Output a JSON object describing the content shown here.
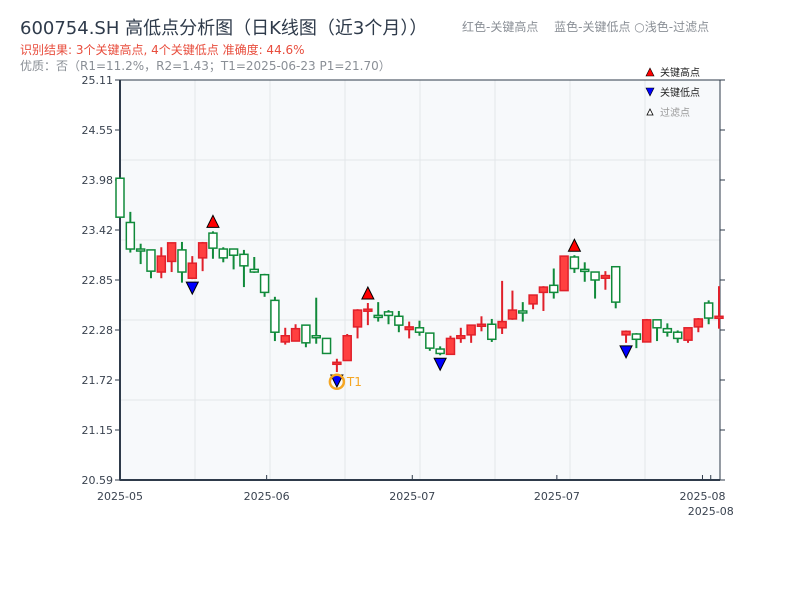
{
  "header": {
    "title": "600754.SH 高低点分析图（日K线图（近3个月））",
    "subtitle": "识别结果: 3个关键高点, 4个关键低点  准确度: 44.6%",
    "quality": "优质：否（R1=11.2%，R2=1.43；T1=2025-06-23 P1=21.70）",
    "color_note": "红色-关键高点　 蓝色-关键低点 ○浅色-过滤点"
  },
  "chart_data": {
    "type": "candlestick",
    "title": "",
    "xlabel": "",
    "ylabel": "",
    "ylim": [
      20.59,
      25.11
    ],
    "yticks": [
      "25.11",
      "24.55",
      "23.98",
      "23.42",
      "22.85",
      "22.28",
      "21.72",
      "21.15",
      "20.59"
    ],
    "xticks": [
      {
        "index": 0,
        "label": "2025-05"
      },
      {
        "index": 14.2,
        "label": "2025-06"
      },
      {
        "index": 28.3,
        "label": "2025-07"
      },
      {
        "index": 42.3,
        "label": "2025-07"
      },
      {
        "index": 56.4,
        "label": "2025-08"
      },
      {
        "index": 57.2,
        "label": "2025-08"
      }
    ],
    "grid": true,
    "colors": {
      "up": "#e0202a",
      "up_fill": "#ff4040",
      "down": "#108a3a",
      "down_fill": "#ffffff",
      "high_marker": "#ff0000",
      "low_marker": "#0000ff",
      "t1_marker": "#f5a623",
      "plot_bg": "#f7f9fb",
      "axis": "#2e3a4a"
    },
    "candles_ohlc": [
      [
        24.0,
        24.01,
        23.55,
        23.56
      ],
      [
        23.5,
        23.62,
        23.16,
        23.2
      ],
      [
        23.2,
        23.26,
        23.03,
        23.18
      ],
      [
        23.19,
        23.19,
        22.87,
        22.95
      ],
      [
        22.94,
        23.22,
        22.87,
        23.12
      ],
      [
        23.06,
        23.27,
        22.94,
        23.27
      ],
      [
        23.19,
        23.28,
        22.82,
        22.94
      ],
      [
        22.87,
        23.12,
        22.86,
        23.04
      ],
      [
        23.1,
        23.28,
        22.95,
        23.27
      ],
      [
        23.38,
        23.4,
        23.09,
        23.21
      ],
      [
        23.2,
        23.22,
        23.05,
        23.1
      ],
      [
        23.2,
        23.2,
        22.97,
        23.13
      ],
      [
        23.14,
        23.19,
        22.77,
        23.01
      ],
      [
        22.97,
        23.11,
        22.93,
        22.94
      ],
      [
        22.91,
        22.92,
        22.66,
        22.71
      ],
      [
        22.62,
        22.66,
        22.16,
        22.26
      ],
      [
        22.15,
        22.31,
        22.12,
        22.22
      ],
      [
        22.16,
        22.35,
        22.16,
        22.3
      ],
      [
        22.34,
        22.34,
        22.09,
        22.14
      ],
      [
        22.22,
        22.65,
        22.13,
        22.2
      ],
      [
        22.19,
        22.19,
        22.02,
        22.02
      ],
      [
        21.9,
        21.96,
        21.81,
        21.92
      ],
      [
        21.94,
        22.24,
        21.94,
        22.22
      ],
      [
        22.32,
        22.52,
        22.19,
        22.51
      ],
      [
        22.5,
        22.59,
        22.34,
        22.52
      ],
      [
        22.45,
        22.6,
        22.38,
        22.44
      ],
      [
        22.49,
        22.51,
        22.35,
        22.45
      ],
      [
        22.44,
        22.5,
        22.26,
        22.34
      ],
      [
        22.29,
        22.38,
        22.19,
        22.32
      ],
      [
        22.31,
        22.39,
        22.22,
        22.26
      ],
      [
        22.25,
        22.25,
        22.05,
        22.08
      ],
      [
        22.07,
        22.1,
        22.0,
        22.02
      ],
      [
        22.01,
        22.22,
        22.01,
        22.19
      ],
      [
        22.19,
        22.31,
        22.14,
        22.22
      ],
      [
        22.23,
        22.34,
        22.14,
        22.34
      ],
      [
        22.34,
        22.44,
        22.27,
        22.35
      ],
      [
        22.35,
        22.41,
        22.15,
        22.18
      ],
      [
        22.31,
        22.84,
        22.24,
        22.38
      ],
      [
        22.41,
        22.73,
        22.4,
        22.51
      ],
      [
        22.5,
        22.6,
        22.38,
        22.49
      ],
      [
        22.58,
        22.68,
        22.52,
        22.68
      ],
      [
        22.71,
        22.78,
        22.5,
        22.77
      ],
      [
        22.79,
        22.98,
        22.64,
        22.71
      ],
      [
        22.73,
        23.12,
        22.73,
        23.12
      ],
      [
        23.11,
        23.13,
        22.93,
        22.98
      ],
      [
        22.97,
        23.05,
        22.83,
        22.96
      ],
      [
        22.94,
        22.94,
        22.64,
        22.85
      ],
      [
        22.87,
        22.95,
        22.74,
        22.9
      ],
      [
        23.0,
        23.0,
        22.53,
        22.6
      ],
      [
        22.23,
        22.28,
        22.14,
        22.27
      ],
      [
        22.24,
        22.25,
        22.08,
        22.18
      ],
      [
        22.15,
        22.41,
        22.15,
        22.4
      ],
      [
        22.4,
        22.4,
        22.16,
        22.31
      ],
      [
        22.3,
        22.36,
        22.21,
        22.26
      ],
      [
        22.26,
        22.28,
        22.14,
        22.19
      ],
      [
        22.17,
        22.31,
        22.14,
        22.31
      ],
      [
        22.32,
        22.42,
        22.26,
        22.41
      ],
      [
        22.59,
        22.62,
        22.35,
        22.42
      ],
      [
        22.44,
        22.78,
        22.3,
        22.44
      ]
    ],
    "key_highs": [
      9,
      24,
      44
    ],
    "key_lows": [
      7,
      21,
      31,
      49
    ],
    "filtered_points": [],
    "t1": {
      "index": 21,
      "label": "T1",
      "price": 21.7
    },
    "legend": {
      "position": "top-right",
      "items": [
        "关键高点",
        "关键低点",
        "过滤点"
      ]
    }
  }
}
